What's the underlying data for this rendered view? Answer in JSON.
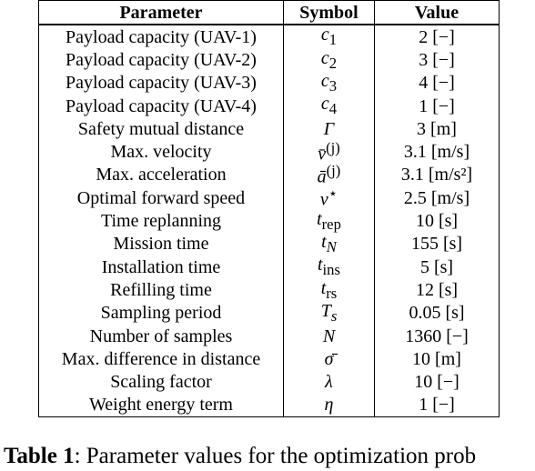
{
  "table": {
    "headers": [
      "Parameter",
      "Symbol",
      "Value"
    ],
    "rows": [
      {
        "parameter": "Payload capacity (UAV-1)",
        "symbol": "c",
        "sub": "1",
        "sup": "",
        "value": "2 [−]"
      },
      {
        "parameter": "Payload capacity (UAV-2)",
        "symbol": "c",
        "sub": "2",
        "sup": "",
        "value": "3 [−]"
      },
      {
        "parameter": "Payload capacity (UAV-3)",
        "symbol": "c",
        "sub": "3",
        "sup": "",
        "value": "4 [−]"
      },
      {
        "parameter": "Payload capacity (UAV-4)",
        "symbol": "c",
        "sub": "4",
        "sup": "",
        "value": "1 [−]"
      },
      {
        "parameter": "Safety mutual distance",
        "symbol": "Γ",
        "sub": "",
        "sup": "",
        "value": "3 [m]"
      },
      {
        "parameter": "Max. velocity",
        "symbol": "v̄",
        "sub": "",
        "sup": "(j)",
        "value": "3.1 [m/s]"
      },
      {
        "parameter": "Max. acceleration",
        "symbol": "ā",
        "sub": "",
        "sup": "(j)",
        "value": "3.1 [m/s²]"
      },
      {
        "parameter": "Optimal forward speed",
        "symbol": "v",
        "sub": "",
        "sup": "⋆",
        "value": "2.5 [m/s]"
      },
      {
        "parameter": "Time replanning",
        "symbol": "t",
        "sub": "rep",
        "sup": "",
        "value": "10 [s]"
      },
      {
        "parameter": "Mission time",
        "symbol": "t",
        "sub": "N",
        "sup": "",
        "value": "155 [s]"
      },
      {
        "parameter": "Installation time",
        "symbol": "t",
        "sub": "ins",
        "sup": "",
        "value": "5 [s]"
      },
      {
        "parameter": "Refilling time",
        "symbol": "t",
        "sub": "rs",
        "sup": "",
        "value": "12 [s]"
      },
      {
        "parameter": "Sampling period",
        "symbol": "T",
        "sub": "s",
        "sup": "",
        "value": "0.05 [s]"
      },
      {
        "parameter": "Number of samples",
        "symbol": "N",
        "sub": "",
        "sup": "",
        "value": "1360 [−]"
      },
      {
        "parameter": "Max. difference in distance",
        "symbol": "σ̄",
        "sub": "",
        "sup": "",
        "value": "10 [m]"
      },
      {
        "parameter": "Scaling factor",
        "symbol": "λ",
        "sub": "",
        "sup": "",
        "value": "10 [−]"
      },
      {
        "parameter": "Weight energy term",
        "symbol": "η",
        "sub": "",
        "sup": "",
        "value": "1 [−]"
      }
    ]
  },
  "caption": {
    "label": "Table 1",
    "text": ": Parameter values for the optimization prob"
  }
}
